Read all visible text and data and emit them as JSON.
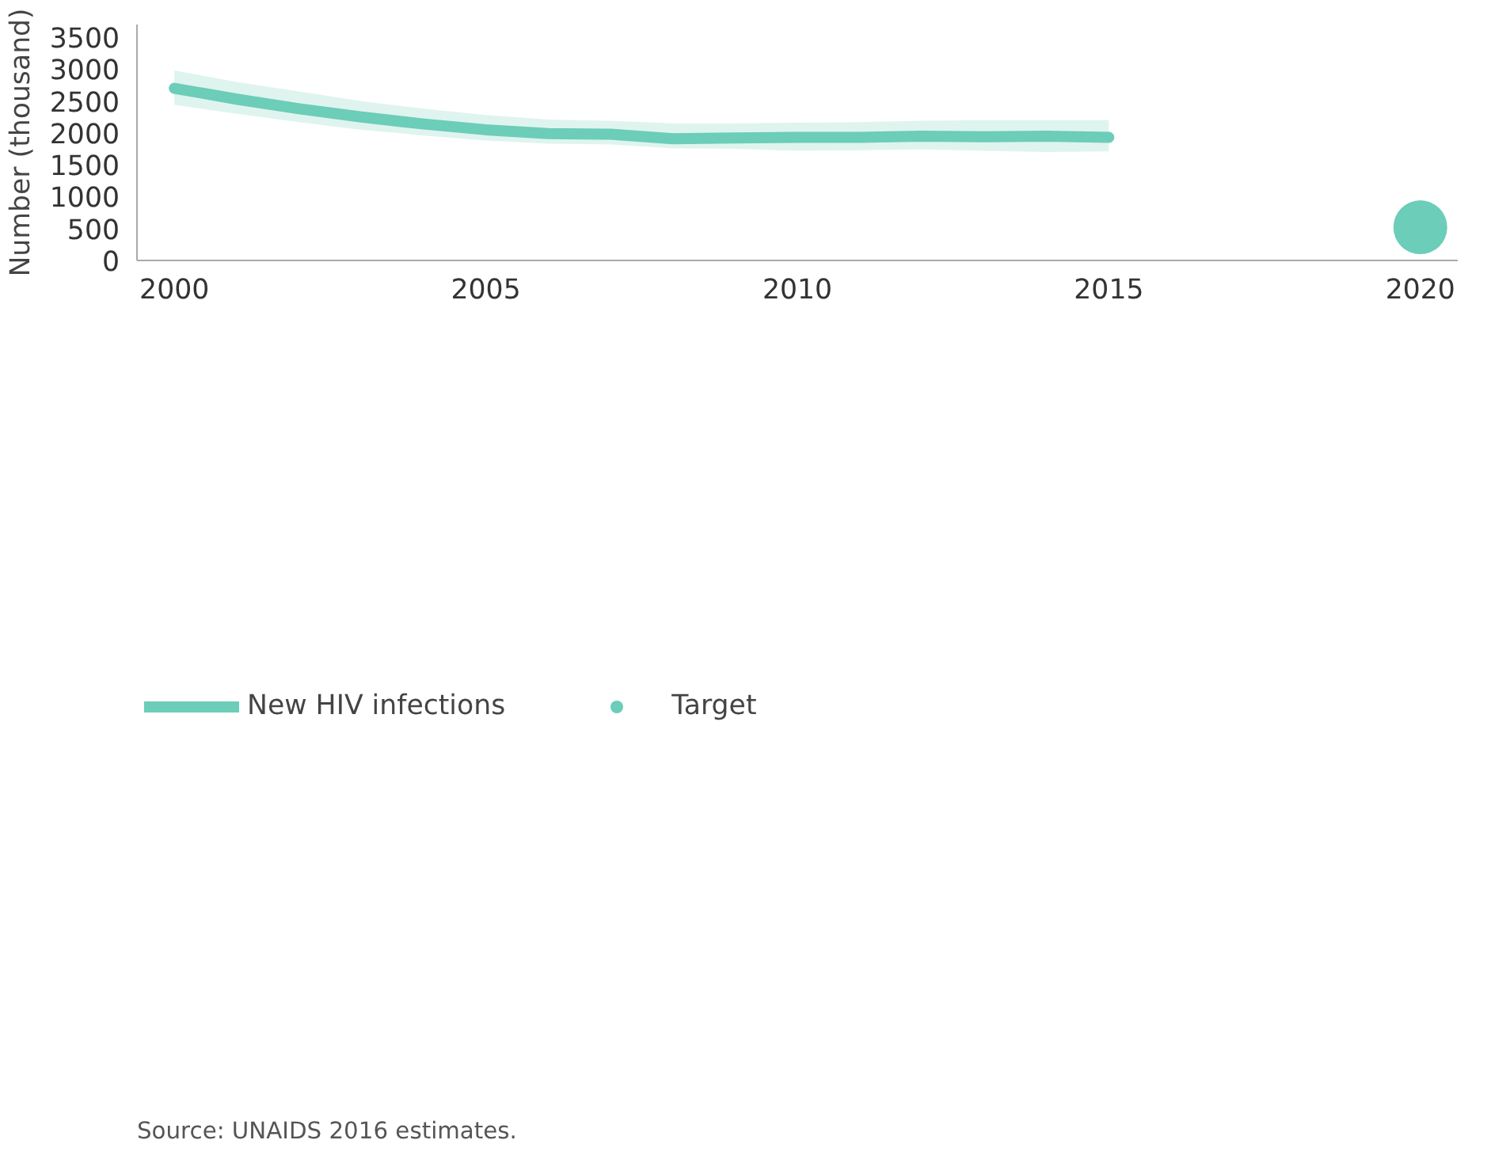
{
  "chart_data": {
    "type": "line",
    "ylabel": "Number (thousand)",
    "annotations": [
      "Source: UNAIDS 2016 estimates."
    ],
    "xlim": [
      1999.4,
      2020.6
    ],
    "xticks": [
      2000,
      2005,
      2010,
      2015,
      2020
    ],
    "ylim": [
      0,
      3700
    ],
    "yticks": [
      0,
      500,
      1000,
      1500,
      2000,
      2500,
      3000,
      3500
    ],
    "grid": false,
    "legend": "bottom",
    "series": [
      {
        "name": "New HIV infections",
        "color": "#6ccdb8",
        "x": [
          2000,
          2001,
          2002,
          2003,
          2004,
          2005,
          2006,
          2007,
          2008,
          2009,
          2010,
          2011,
          2012,
          2013,
          2014,
          2015
        ],
        "values": [
          2700,
          2530,
          2380,
          2250,
          2140,
          2050,
          1990,
          1980,
          1910,
          1920,
          1930,
          1930,
          1950,
          1940,
          1950,
          1930
        ],
        "lower": [
          2440,
          2300,
          2170,
          2050,
          1960,
          1880,
          1830,
          1820,
          1760,
          1750,
          1720,
          1730,
          1740,
          1720,
          1700,
          1710
        ],
        "upper": [
          2980,
          2800,
          2650,
          2500,
          2380,
          2280,
          2210,
          2190,
          2150,
          2150,
          2160,
          2170,
          2190,
          2200,
          2200,
          2200
        ]
      },
      {
        "name": "Target",
        "type": "scatter",
        "color": "#6ccdb8",
        "x": [
          2020
        ],
        "values": [
          520
        ]
      }
    ]
  }
}
